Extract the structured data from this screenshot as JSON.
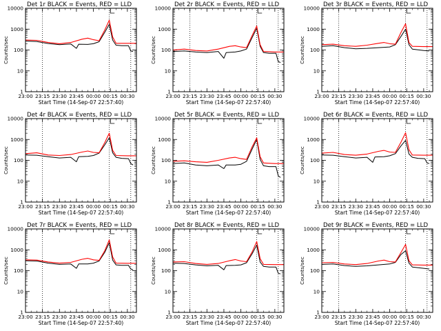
{
  "figure": {
    "colors": {
      "events": "#000000",
      "lld": "#ff0000",
      "axes": "#000000",
      "background": "#ffffff"
    }
  },
  "chart_data": [
    {
      "type": "line",
      "title": "Det 1r BLACK = Events, RED = LLD",
      "xlabel": "Start Time (14-Sep-07 22:57:40)",
      "ylabel": "Counts/sec",
      "yscale": "log",
      "ylim": [
        1,
        10000
      ],
      "xlim": [
        "23:00",
        "00:38"
      ],
      "x_tick_labels": [
        "23:00",
        "23:15",
        "23:30",
        "23:45",
        "00:00",
        "00:15",
        "00:30"
      ],
      "y_tick_labels": [
        "1",
        "10",
        "100",
        "1000",
        "10000"
      ],
      "vlines_dotted": [
        "23:15",
        "00:14",
        "00:33"
      ],
      "series": [
        {
          "name": "Events",
          "color": "#000000",
          "x": [
            "23:00",
            "23:10",
            "23:20",
            "23:30",
            "23:40",
            "23:45",
            "23:47",
            "23:55",
            "00:00",
            "00:05",
            "00:10",
            "00:14",
            "00:17",
            "00:20",
            "00:25",
            "00:31",
            "00:33",
            "00:35"
          ],
          "y": [
            270,
            255,
            205,
            180,
            195,
            120,
            190,
            185,
            200,
            250,
            700,
            1700,
            300,
            170,
            160,
            160,
            90,
            85
          ]
        },
        {
          "name": "LLD",
          "color": "#ff0000",
          "x": [
            "23:00",
            "23:10",
            "23:20",
            "23:30",
            "23:40",
            "23:50",
            "23:55",
            "00:00",
            "00:05",
            "00:10",
            "00:14",
            "00:17",
            "00:20",
            "00:30",
            "00:38"
          ],
          "y": [
            300,
            290,
            230,
            200,
            230,
            330,
            370,
            310,
            280,
            900,
            2700,
            420,
            210,
            210,
            210
          ]
        }
      ]
    },
    {
      "type": "line",
      "title": "Det 2r BLACK = Events, RED = LLD",
      "xlabel": "Start Time (14-Sep-07 22:57:40)",
      "ylabel": "Counts/sec",
      "yscale": "log",
      "ylim": [
        1,
        10000
      ],
      "xlim": [
        "23:00",
        "00:38"
      ],
      "x_tick_labels": [
        "23:00",
        "23:15",
        "23:30",
        "23:45",
        "00:00",
        "00:15",
        "00:30"
      ],
      "y_tick_labels": [
        "1",
        "10",
        "100",
        "1000",
        "10000"
      ],
      "vlines_dotted": [
        "23:15",
        "00:14",
        "00:33"
      ],
      "series": [
        {
          "name": "Events",
          "color": "#000000",
          "x": [
            "23:00",
            "23:10",
            "23:20",
            "23:30",
            "23:40",
            "23:45",
            "23:47",
            "23:55",
            "00:00",
            "00:05",
            "00:10",
            "00:14",
            "00:17",
            "00:20",
            "00:25",
            "00:31",
            "00:33",
            "00:35"
          ],
          "y": [
            85,
            90,
            80,
            75,
            85,
            40,
            75,
            80,
            90,
            110,
            400,
            1100,
            150,
            75,
            70,
            70,
            28,
            25
          ]
        },
        {
          "name": "LLD",
          "color": "#ff0000",
          "x": [
            "23:00",
            "23:10",
            "23:20",
            "23:30",
            "23:40",
            "23:50",
            "23:55",
            "00:00",
            "00:05",
            "00:10",
            "00:14",
            "00:17",
            "00:20",
            "00:30",
            "00:38"
          ],
          "y": [
            100,
            110,
            95,
            90,
            110,
            150,
            160,
            140,
            130,
            500,
            1400,
            180,
            85,
            80,
            80
          ]
        }
      ]
    },
    {
      "type": "line",
      "title": "Det 3r BLACK = Events, RED = LLD",
      "xlabel": "Start Time (14-Sep-07 22:57:40)",
      "ylabel": "Counts/sec",
      "yscale": "log",
      "ylim": [
        1,
        10000
      ],
      "xlim": [
        "23:00",
        "00:38"
      ],
      "x_tick_labels": [
        "23:00",
        "23:15",
        "23:30",
        "23:45",
        "00:00",
        "00:15",
        "00:30"
      ],
      "y_tick_labels": [
        "1",
        "10",
        "100",
        "1000",
        "10000"
      ],
      "vlines_dotted": [
        "23:15",
        "00:14",
        "00:33"
      ],
      "series": [
        {
          "name": "Events",
          "color": "#000000",
          "x": [
            "23:00",
            "23:10",
            "23:20",
            "23:30",
            "23:40",
            "23:50",
            "00:00",
            "00:05",
            "00:10",
            "00:14",
            "00:17",
            "00:20",
            "00:30",
            "00:35"
          ],
          "y": [
            150,
            160,
            130,
            115,
            120,
            130,
            140,
            180,
            450,
            1000,
            180,
            110,
            95,
            90
          ]
        },
        {
          "name": "LLD",
          "color": "#ff0000",
          "x": [
            "23:00",
            "23:10",
            "23:20",
            "23:30",
            "23:40",
            "23:50",
            "23:55",
            "00:00",
            "00:05",
            "00:10",
            "00:14",
            "00:17",
            "00:20",
            "00:30",
            "00:38"
          ],
          "y": [
            180,
            190,
            160,
            150,
            170,
            210,
            230,
            200,
            190,
            700,
            1800,
            230,
            150,
            145,
            145
          ]
        }
      ]
    },
    {
      "type": "line",
      "title": "Det 4r BLACK = Events, RED = LLD",
      "xlabel": "Start Time (14-Sep-07 22:57:40)",
      "ylabel": "Counts/sec",
      "yscale": "log",
      "ylim": [
        1,
        10000
      ],
      "xlim": [
        "23:00",
        "00:38"
      ],
      "x_tick_labels": [
        "23:00",
        "23:15",
        "23:30",
        "23:45",
        "00:00",
        "00:15",
        "00:30"
      ],
      "y_tick_labels": [
        "1",
        "10",
        "100",
        "1000",
        "10000"
      ],
      "vlines_dotted": [
        "23:15",
        "00:14",
        "00:33"
      ],
      "series": [
        {
          "name": "Events",
          "color": "#000000",
          "x": [
            "23:00",
            "23:10",
            "23:20",
            "23:30",
            "23:40",
            "23:45",
            "23:47",
            "23:55",
            "00:00",
            "00:05",
            "00:10",
            "00:14",
            "00:17",
            "00:20",
            "00:25",
            "00:31",
            "00:33",
            "00:35"
          ],
          "y": [
            180,
            175,
            150,
            130,
            140,
            85,
            150,
            155,
            170,
            220,
            550,
            1200,
            230,
            140,
            125,
            120,
            70,
            60
          ]
        },
        {
          "name": "LLD",
          "color": "#ff0000",
          "x": [
            "23:00",
            "23:10",
            "23:20",
            "23:30",
            "23:40",
            "23:50",
            "23:55",
            "00:00",
            "00:05",
            "00:10",
            "00:14",
            "00:17",
            "00:20",
            "00:30",
            "00:38"
          ],
          "y": [
            210,
            230,
            180,
            170,
            190,
            250,
            280,
            240,
            230,
            700,
            2000,
            300,
            170,
            165,
            165
          ]
        }
      ]
    },
    {
      "type": "line",
      "title": "Det 5r BLACK = Events, RED = LLD",
      "xlabel": "Start Time (14-Sep-07 22:57:40)",
      "ylabel": "Counts/sec",
      "yscale": "log",
      "ylim": [
        1,
        10000
      ],
      "xlim": [
        "23:00",
        "00:38"
      ],
      "x_tick_labels": [
        "23:00",
        "23:15",
        "23:30",
        "23:45",
        "00:00",
        "00:15",
        "00:30"
      ],
      "y_tick_labels": [
        "1",
        "10",
        "100",
        "1000",
        "10000"
      ],
      "vlines_dotted": [
        "23:15",
        "00:14",
        "00:33"
      ],
      "series": [
        {
          "name": "Events",
          "color": "#000000",
          "x": [
            "23:00",
            "23:10",
            "23:20",
            "23:30",
            "23:40",
            "23:45",
            "23:47",
            "23:55",
            "00:00",
            "00:05",
            "00:10",
            "00:14",
            "00:17",
            "00:20",
            "00:25",
            "00:31",
            "00:33",
            "00:35"
          ],
          "y": [
            70,
            75,
            60,
            55,
            60,
            40,
            60,
            60,
            65,
            90,
            350,
            1000,
            110,
            55,
            50,
            50,
            18,
            15
          ]
        },
        {
          "name": "LLD",
          "color": "#ff0000",
          "x": [
            "23:00",
            "23:10",
            "23:20",
            "23:30",
            "23:40",
            "23:50",
            "23:55",
            "00:00",
            "00:05",
            "00:10",
            "00:14",
            "00:17",
            "00:20",
            "00:30",
            "00:38"
          ],
          "y": [
            90,
            95,
            85,
            80,
            100,
            130,
            140,
            120,
            110,
            450,
            1200,
            150,
            75,
            70,
            70
          ]
        }
      ]
    },
    {
      "type": "line",
      "title": "Det 6r BLACK = Events, RED = LLD",
      "xlabel": "Start Time (14-Sep-07 22:57:40)",
      "ylabel": "Counts/sec",
      "yscale": "log",
      "ylim": [
        1,
        10000
      ],
      "xlim": [
        "23:00",
        "00:38"
      ],
      "x_tick_labels": [
        "23:00",
        "23:15",
        "23:30",
        "23:45",
        "00:00",
        "00:15",
        "00:30"
      ],
      "y_tick_labels": [
        "1",
        "10",
        "100",
        "1000",
        "10000"
      ],
      "vlines_dotted": [
        "23:15",
        "00:14",
        "00:33"
      ],
      "series": [
        {
          "name": "Events",
          "color": "#000000",
          "x": [
            "23:00",
            "23:10",
            "23:20",
            "23:30",
            "23:40",
            "23:45",
            "23:47",
            "23:55",
            "00:00",
            "00:05",
            "00:10",
            "00:14",
            "00:17",
            "00:20",
            "00:25",
            "00:31",
            "00:33",
            "00:35"
          ],
          "y": [
            180,
            175,
            150,
            130,
            140,
            80,
            145,
            150,
            165,
            210,
            500,
            900,
            200,
            140,
            125,
            120,
            75,
            70
          ]
        },
        {
          "name": "LLD",
          "color": "#ff0000",
          "x": [
            "23:00",
            "23:10",
            "23:20",
            "23:30",
            "23:40",
            "23:50",
            "23:55",
            "00:00",
            "00:05",
            "00:10",
            "00:14",
            "00:17",
            "00:20",
            "00:30",
            "00:38"
          ],
          "y": [
            220,
            240,
            190,
            175,
            200,
            270,
            300,
            250,
            240,
            750,
            2100,
            320,
            180,
            175,
            175
          ]
        }
      ]
    },
    {
      "type": "line",
      "title": "Det 7r BLACK = Events, RED = LLD",
      "xlabel": "Start Time (14-Sep-07 22:57:40)",
      "ylabel": "Counts/sec",
      "yscale": "log",
      "ylim": [
        1,
        10000
      ],
      "xlim": [
        "23:00",
        "00:38"
      ],
      "x_tick_labels": [
        "23:00",
        "23:15",
        "23:30",
        "23:45",
        "00:00",
        "00:15",
        "00:30"
      ],
      "y_tick_labels": [
        "1",
        "10",
        "100",
        "1000",
        "10000"
      ],
      "vlines_dotted": [
        "23:15",
        "00:14",
        "00:33"
      ],
      "series": [
        {
          "name": "Events",
          "color": "#000000",
          "x": [
            "23:00",
            "23:10",
            "23:20",
            "23:30",
            "23:40",
            "23:45",
            "23:47",
            "23:55",
            "00:00",
            "00:05",
            "00:10",
            "00:14",
            "00:17",
            "00:20",
            "00:25",
            "00:31",
            "00:33",
            "00:35"
          ],
          "y": [
            300,
            290,
            230,
            200,
            210,
            130,
            210,
            210,
            230,
            290,
            750,
            2200,
            320,
            190,
            180,
            180,
            120,
            110
          ]
        },
        {
          "name": "LLD",
          "color": "#ff0000",
          "x": [
            "23:00",
            "23:10",
            "23:20",
            "23:30",
            "23:40",
            "23:50",
            "23:55",
            "00:00",
            "00:05",
            "00:10",
            "00:14",
            "00:17",
            "00:20",
            "00:30",
            "00:38"
          ],
          "y": [
            330,
            320,
            260,
            230,
            250,
            350,
            390,
            330,
            310,
            900,
            3000,
            450,
            230,
            225,
            225
          ]
        }
      ]
    },
    {
      "type": "line",
      "title": "Det 8r BLACK = Events, RED = LLD",
      "xlabel": "Start Time (14-Sep-07 22:57:40)",
      "ylabel": "Counts/sec",
      "yscale": "log",
      "ylim": [
        1,
        10000
      ],
      "xlim": [
        "23:00",
        "00:38"
      ],
      "x_tick_labels": [
        "23:00",
        "23:15",
        "23:30",
        "23:45",
        "00:00",
        "00:15",
        "00:30"
      ],
      "y_tick_labels": [
        "1",
        "10",
        "100",
        "1000",
        "10000"
      ],
      "vlines_dotted": [
        "23:15",
        "00:14",
        "00:33"
      ],
      "series": [
        {
          "name": "Events",
          "color": "#000000",
          "x": [
            "23:00",
            "23:10",
            "23:20",
            "23:30",
            "23:40",
            "23:45",
            "23:47",
            "23:55",
            "00:00",
            "00:05",
            "00:10",
            "00:14",
            "00:17",
            "00:20",
            "00:25",
            "00:31",
            "00:33",
            "00:35"
          ],
          "y": [
            230,
            220,
            190,
            170,
            180,
            110,
            175,
            180,
            190,
            240,
            650,
            1700,
            260,
            160,
            150,
            150,
            75,
            70
          ]
        },
        {
          "name": "LLD",
          "color": "#ff0000",
          "x": [
            "23:00",
            "23:10",
            "23:20",
            "23:30",
            "23:40",
            "23:50",
            "23:55",
            "00:00",
            "00:05",
            "00:10",
            "00:14",
            "00:17",
            "00:20",
            "00:30",
            "00:38"
          ],
          "y": [
            260,
            270,
            220,
            200,
            220,
            300,
            340,
            290,
            270,
            800,
            2500,
            380,
            200,
            195,
            195
          ]
        }
      ]
    },
    {
      "type": "line",
      "title": "Det 9r BLACK = Events, RED = LLD",
      "xlabel": "Start Time (14-Sep-07 22:57:40)",
      "ylabel": "Counts/sec",
      "yscale": "log",
      "ylim": [
        1,
        10000
      ],
      "xlim": [
        "23:00",
        "00:38"
      ],
      "x_tick_labels": [
        "23:00",
        "23:15",
        "23:30",
        "23:45",
        "00:00",
        "00:15",
        "00:30"
      ],
      "y_tick_labels": [
        "1",
        "10",
        "100",
        "1000",
        "10000"
      ],
      "vlines_dotted": [
        "23:15",
        "00:14",
        "00:33"
      ],
      "series": [
        {
          "name": "Events",
          "color": "#000000",
          "x": [
            "23:00",
            "23:10",
            "23:20",
            "23:30",
            "23:40",
            "23:50",
            "00:00",
            "00:05",
            "00:10",
            "00:14",
            "00:17",
            "00:20",
            "00:30",
            "00:35"
          ],
          "y": [
            200,
            210,
            175,
            160,
            170,
            190,
            210,
            250,
            600,
            900,
            230,
            150,
            130,
            120
          ]
        },
        {
          "name": "LLD",
          "color": "#ff0000",
          "x": [
            "23:00",
            "23:10",
            "23:20",
            "23:30",
            "23:40",
            "23:50",
            "23:55",
            "00:00",
            "00:05",
            "00:10",
            "00:14",
            "00:17",
            "00:20",
            "00:30",
            "00:38"
          ],
          "y": [
            240,
            250,
            210,
            195,
            220,
            290,
            320,
            270,
            260,
            750,
            1800,
            300,
            190,
            185,
            185
          ]
        }
      ]
    }
  ]
}
